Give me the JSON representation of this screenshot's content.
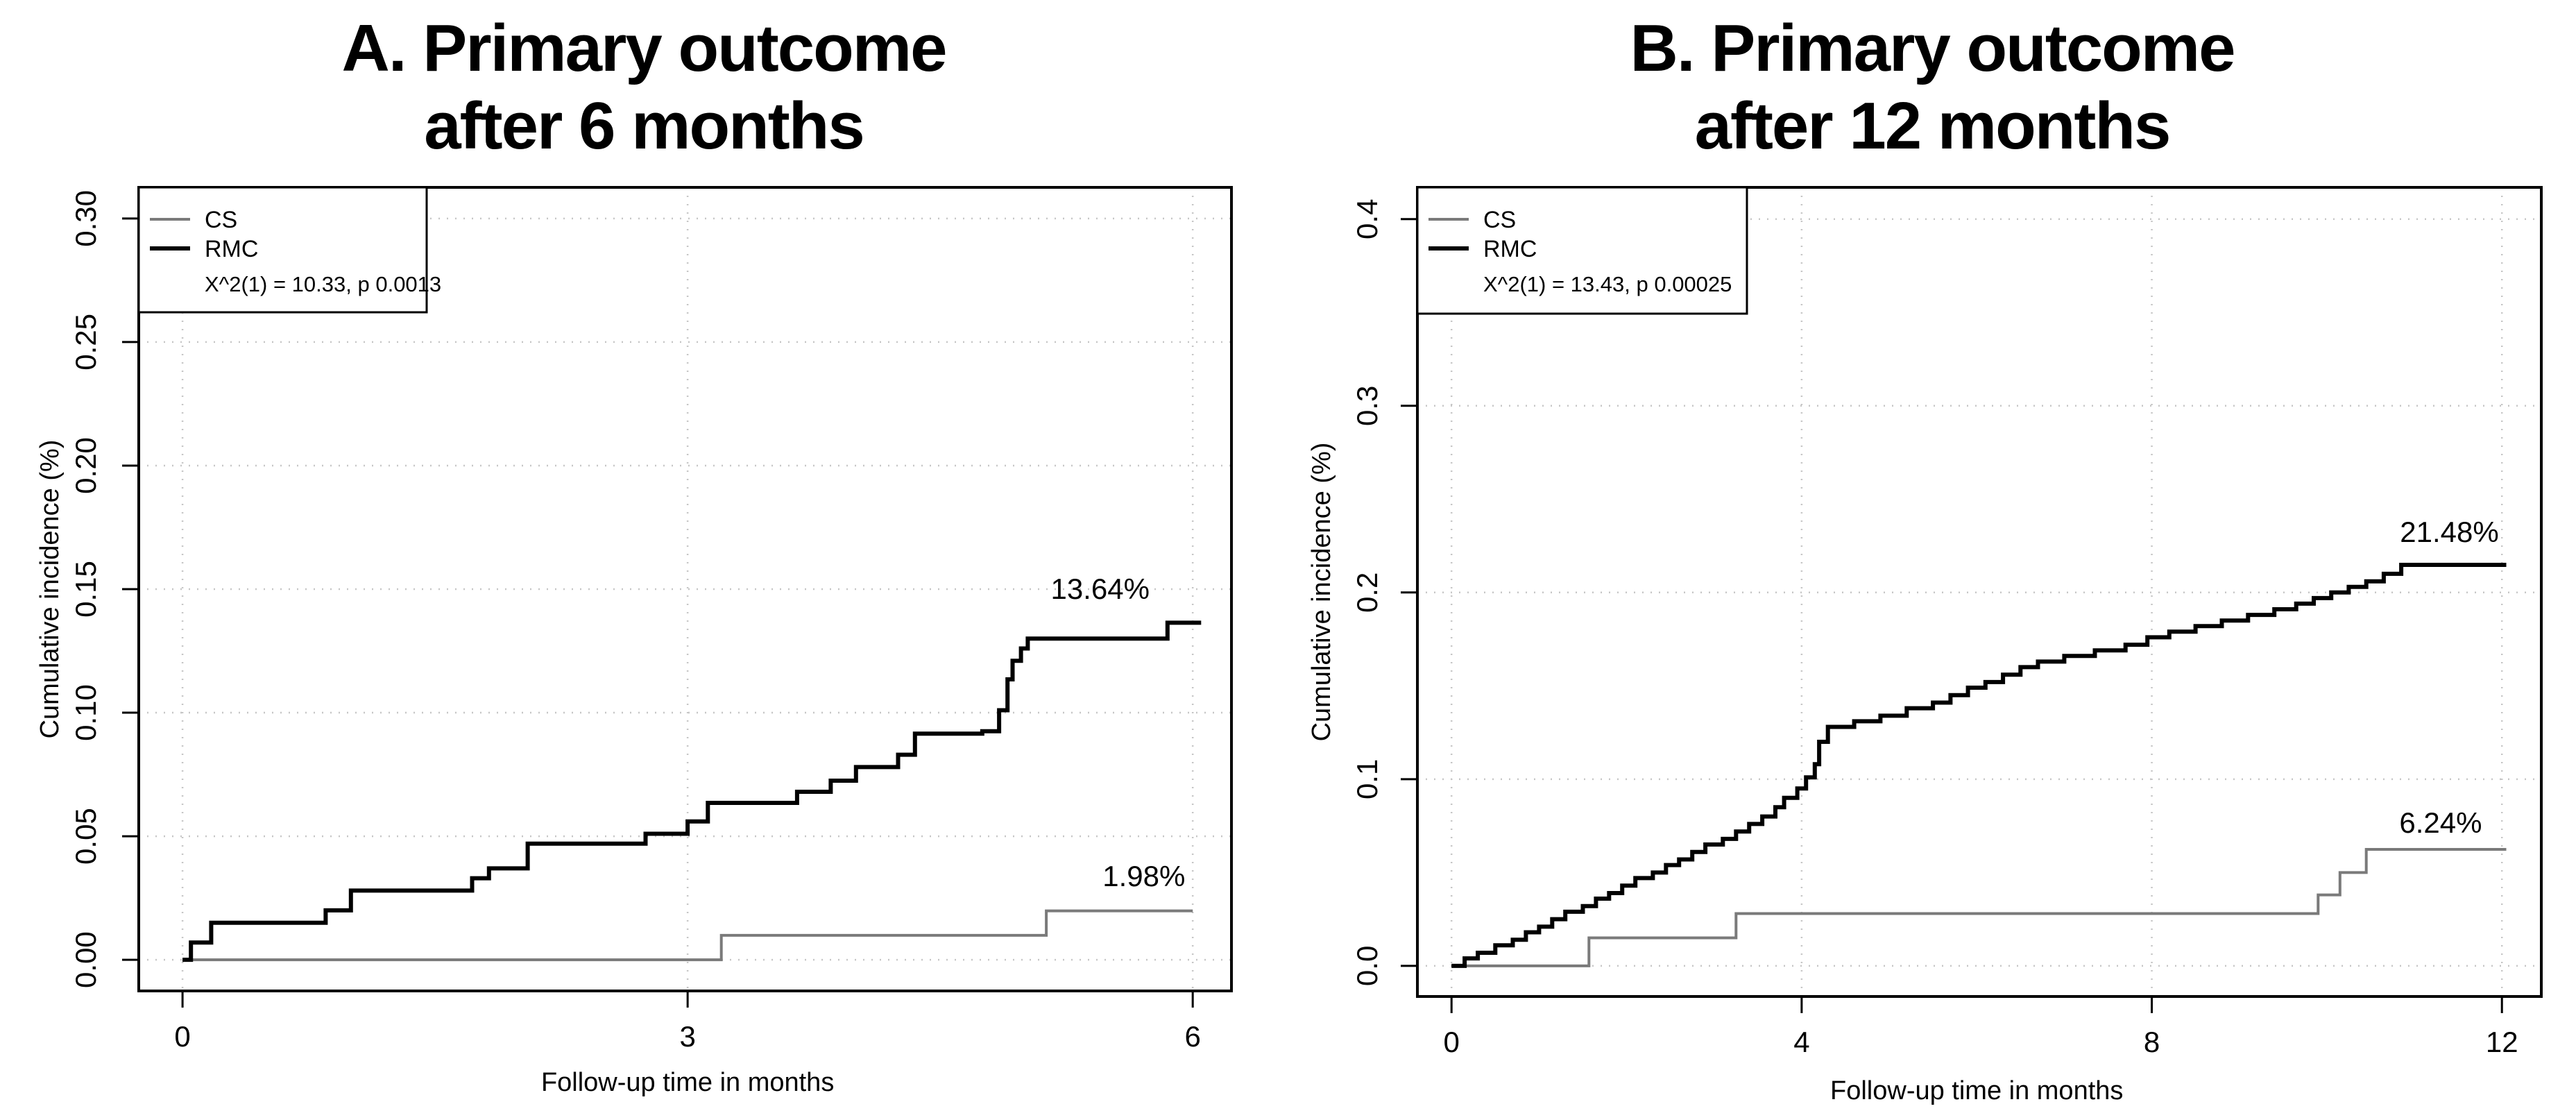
{
  "figure": {
    "background": "#ffffff",
    "text_color": "#000000",
    "grid_color": "#c6c6c6",
    "panel_count": 2
  },
  "chart_data": [
    {
      "type": "line",
      "subtype": "step",
      "title": "A. Primary outcome after 6 months",
      "title_lines": [
        "A. Primary outcome",
        "after 6 months"
      ],
      "xlabel": "Follow-up time in months",
      "ylabel": "Cumulative incidence (%)",
      "xlim": [
        -0.26,
        6.23
      ],
      "ylim": [
        -0.0126,
        0.3126
      ],
      "grid": true,
      "x_ticks": [
        {
          "v": 0,
          "label": "0"
        },
        {
          "v": 3,
          "label": "3"
        },
        {
          "v": 6,
          "label": "6"
        }
      ],
      "y_ticks": [
        {
          "v": 0.0,
          "label": "0.00"
        },
        {
          "v": 0.05,
          "label": "0.05"
        },
        {
          "v": 0.1,
          "label": "0.10"
        },
        {
          "v": 0.15,
          "label": "0.15"
        },
        {
          "v": 0.2,
          "label": "0.20"
        },
        {
          "v": 0.25,
          "label": "0.25"
        },
        {
          "v": 0.3,
          "label": "0.30"
        }
      ],
      "legend": {
        "position": "top-left",
        "entries": [
          {
            "label": "CS",
            "color": "#7a7a7a"
          },
          {
            "label": "RMC",
            "color": "#000000"
          }
        ],
        "stat_text": "X^2(1) = 10.33, p 0.0013"
      },
      "annotations": [
        {
          "text": "13.64%",
          "x": 5.45,
          "y": 0.146
        },
        {
          "text": "1.98%",
          "x": 5.71,
          "y": 0.0298
        }
      ],
      "series": [
        {
          "name": "CS",
          "color": "#7a7a7a",
          "stroke_width": 4,
          "points": [
            [
              0,
              0
            ],
            [
              3.2,
              0.0099
            ],
            [
              5.13,
              0.0198
            ]
          ],
          "end_x": 6.0,
          "final_value_pct": 1.98
        },
        {
          "name": "RMC",
          "color": "#000000",
          "stroke_width": 6,
          "points": [
            [
              0,
              0
            ],
            [
              0.05,
              0.007
            ],
            [
              0.17,
              0.015
            ],
            [
              0.85,
              0.02
            ],
            [
              1.0,
              0.028
            ],
            [
              1.72,
              0.033
            ],
            [
              1.82,
              0.037
            ],
            [
              2.05,
              0.047
            ],
            [
              2.75,
              0.051
            ],
            [
              3.0,
              0.056
            ],
            [
              3.12,
              0.0635
            ],
            [
              3.65,
              0.068
            ],
            [
              3.85,
              0.0725
            ],
            [
              4.0,
              0.078
            ],
            [
              4.25,
              0.083
            ],
            [
              4.35,
              0.0915
            ],
            [
              4.75,
              0.0925
            ],
            [
              4.85,
              0.101
            ],
            [
              4.9,
              0.1135
            ],
            [
              4.93,
              0.121
            ],
            [
              4.98,
              0.126
            ],
            [
              5.02,
              0.13
            ],
            [
              5.85,
              0.1364
            ]
          ],
          "end_x": 6.05,
          "final_value_pct": 13.64
        }
      ]
    },
    {
      "type": "line",
      "subtype": "step",
      "title": "B. Primary outcome after 12 months",
      "title_lines": [
        "B. Primary outcome",
        "after 12 months"
      ],
      "xlabel": "Follow-up time in months",
      "ylabel": "Cumulative incidence (%)",
      "xlim": [
        -0.39,
        12.45
      ],
      "ylim": [
        -0.0164,
        0.417
      ],
      "grid": true,
      "x_ticks": [
        {
          "v": 0,
          "label": "0"
        },
        {
          "v": 4,
          "label": "4"
        },
        {
          "v": 8,
          "label": "8"
        },
        {
          "v": 12,
          "label": "12"
        }
      ],
      "y_ticks": [
        {
          "v": 0.0,
          "label": "0.0"
        },
        {
          "v": 0.1,
          "label": "0.1"
        },
        {
          "v": 0.2,
          "label": "0.2"
        },
        {
          "v": 0.3,
          "label": "0.3"
        },
        {
          "v": 0.4,
          "label": "0.4"
        }
      ],
      "legend": {
        "position": "top-left",
        "entries": [
          {
            "label": "CS",
            "color": "#7a7a7a"
          },
          {
            "label": "RMC",
            "color": "#000000"
          }
        ],
        "stat_text": "X^2(1) = 13.43, p 0.00025"
      },
      "annotations": [
        {
          "text": "21.48%",
          "x": 11.4,
          "y": 0.227
        },
        {
          "text": "6.24%",
          "x": 11.3,
          "y": 0.0714
        }
      ],
      "series": [
        {
          "name": "CS",
          "color": "#7a7a7a",
          "stroke_width": 4,
          "points": [
            [
              0,
              0
            ],
            [
              1.57,
              0.015
            ],
            [
              3.25,
              0.028
            ],
            [
              9.9,
              0.038
            ],
            [
              10.15,
              0.05
            ],
            [
              10.45,
              0.0624
            ]
          ],
          "end_x": 12.05,
          "final_value_pct": 6.24
        },
        {
          "name": "RMC",
          "color": "#000000",
          "stroke_width": 6,
          "points": [
            [
              0,
              0
            ],
            [
              0.15,
              0.004
            ],
            [
              0.3,
              0.007
            ],
            [
              0.5,
              0.011
            ],
            [
              0.7,
              0.014
            ],
            [
              0.85,
              0.018
            ],
            [
              1.0,
              0.021
            ],
            [
              1.15,
              0.025
            ],
            [
              1.3,
              0.029
            ],
            [
              1.5,
              0.032
            ],
            [
              1.65,
              0.036
            ],
            [
              1.8,
              0.039
            ],
            [
              1.95,
              0.043
            ],
            [
              2.1,
              0.047
            ],
            [
              2.3,
              0.05
            ],
            [
              2.45,
              0.054
            ],
            [
              2.6,
              0.057
            ],
            [
              2.75,
              0.061
            ],
            [
              2.9,
              0.065
            ],
            [
              3.1,
              0.068
            ],
            [
              3.25,
              0.072
            ],
            [
              3.4,
              0.076
            ],
            [
              3.55,
              0.08
            ],
            [
              3.7,
              0.085
            ],
            [
              3.8,
              0.09
            ],
            [
              3.95,
              0.095
            ],
            [
              4.05,
              0.101
            ],
            [
              4.15,
              0.108
            ],
            [
              4.2,
              0.12
            ],
            [
              4.3,
              0.128
            ],
            [
              4.6,
              0.131
            ],
            [
              4.9,
              0.134
            ],
            [
              5.2,
              0.138
            ],
            [
              5.5,
              0.141
            ],
            [
              5.7,
              0.145
            ],
            [
              5.9,
              0.149
            ],
            [
              6.1,
              0.152
            ],
            [
              6.3,
              0.156
            ],
            [
              6.5,
              0.16
            ],
            [
              6.7,
              0.163
            ],
            [
              7.0,
              0.166
            ],
            [
              7.35,
              0.169
            ],
            [
              7.7,
              0.172
            ],
            [
              7.95,
              0.176
            ],
            [
              8.2,
              0.179
            ],
            [
              8.5,
              0.182
            ],
            [
              8.8,
              0.185
            ],
            [
              9.1,
              0.188
            ],
            [
              9.4,
              0.191
            ],
            [
              9.65,
              0.194
            ],
            [
              9.85,
              0.197
            ],
            [
              10.05,
              0.2
            ],
            [
              10.25,
              0.203
            ],
            [
              10.45,
              0.206
            ],
            [
              10.65,
              0.21
            ],
            [
              10.85,
              0.2148
            ]
          ],
          "end_x": 12.05,
          "final_value_pct": 21.48
        }
      ]
    }
  ]
}
